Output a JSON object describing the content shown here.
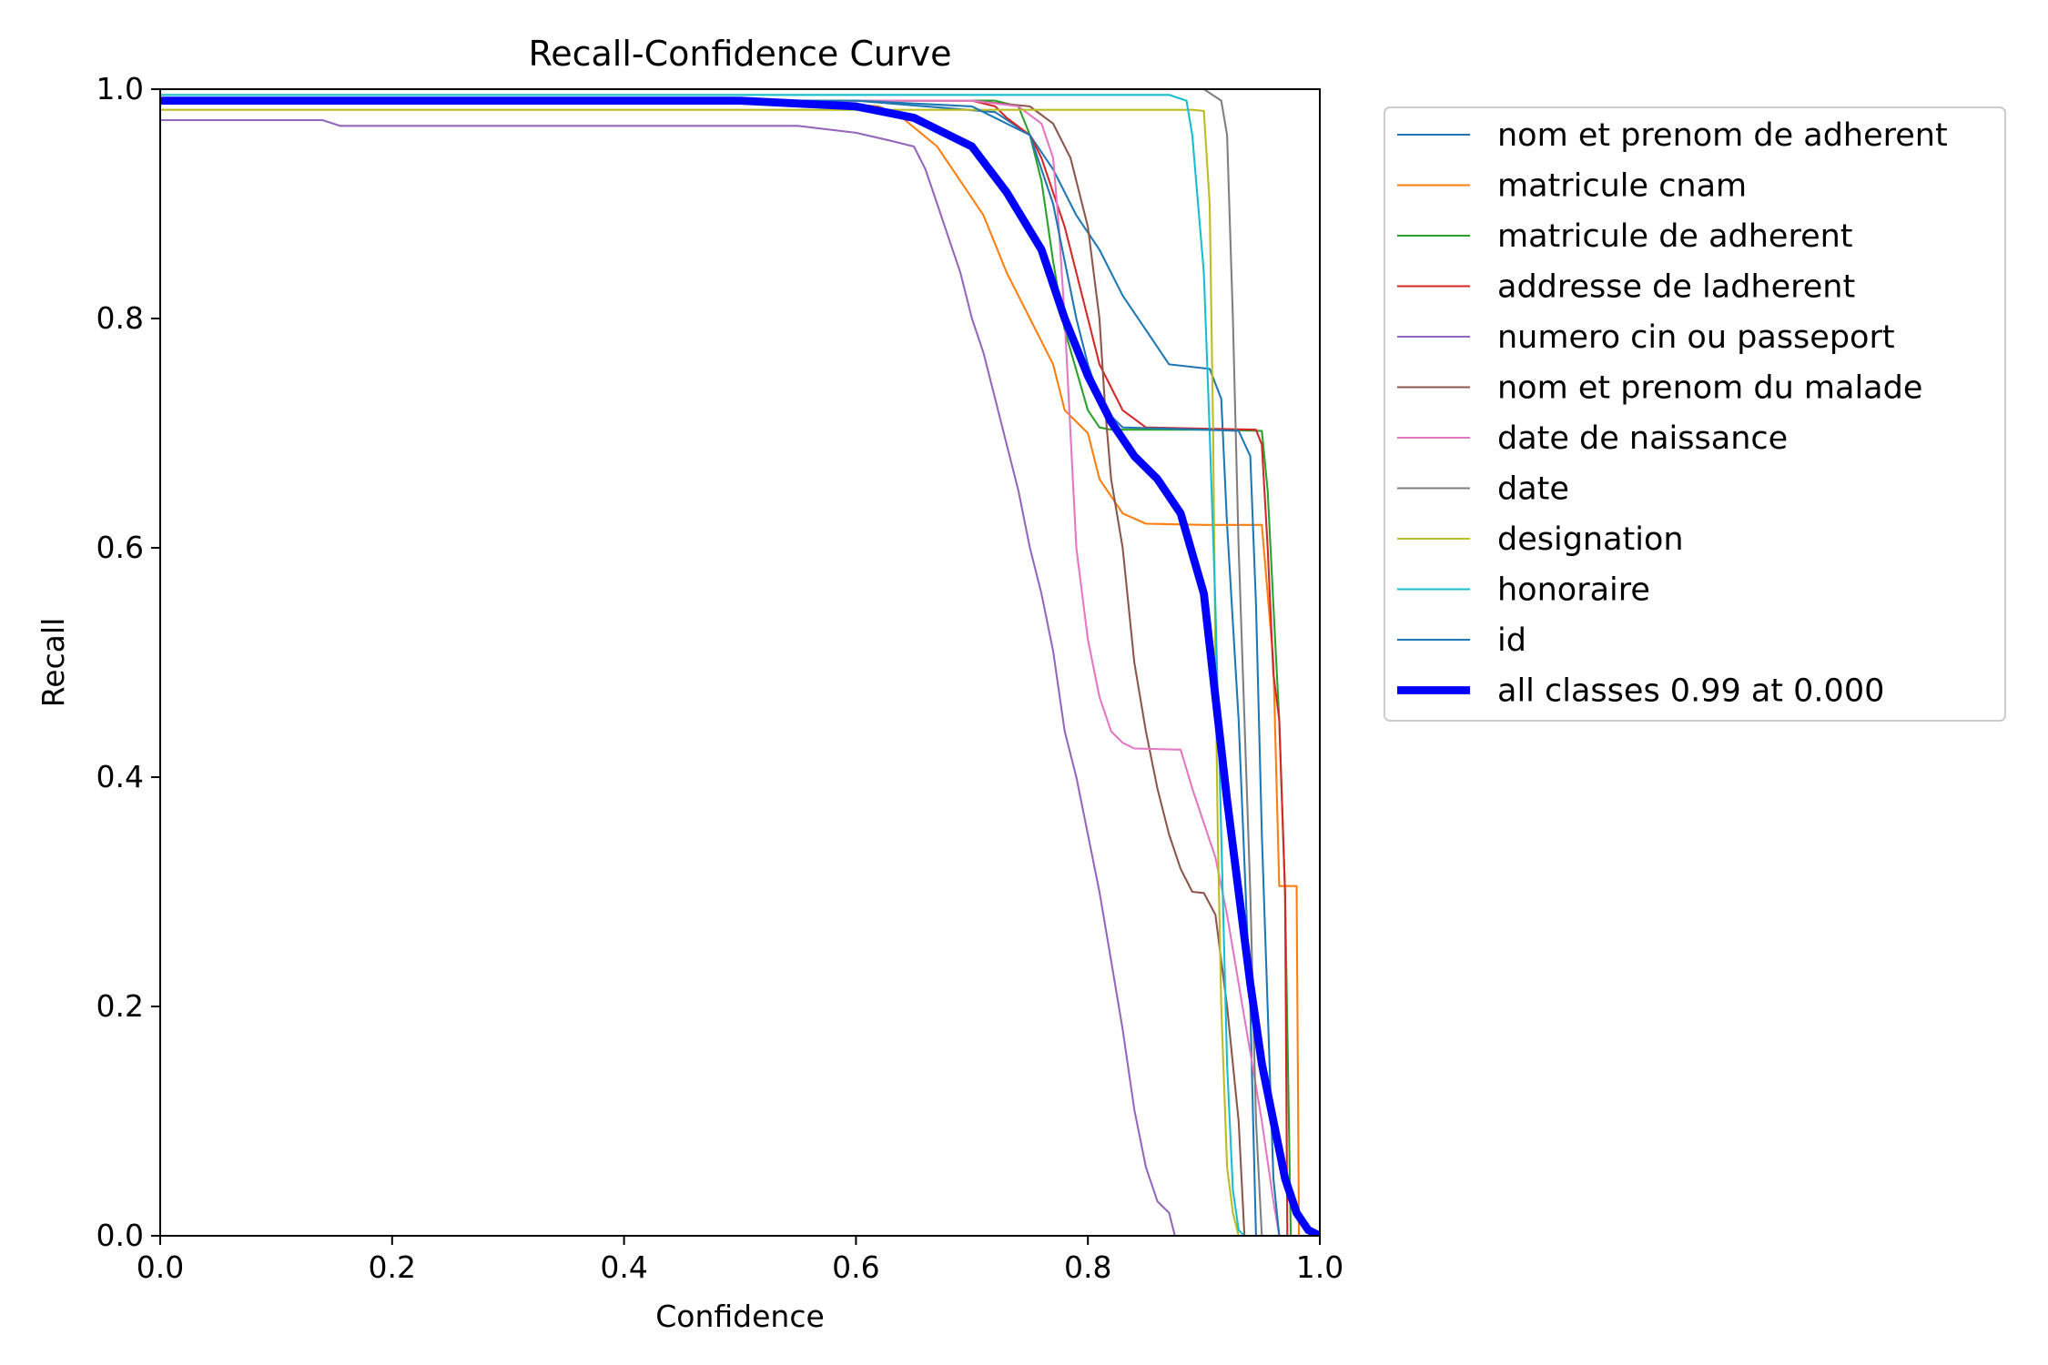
{
  "chart_data": {
    "type": "line",
    "title": "Recall-Confidence Curve",
    "xlabel": "Confidence",
    "ylabel": "Recall",
    "xlim": [
      0,
      1
    ],
    "ylim": [
      0,
      1
    ],
    "xticks": [
      "0.0",
      "0.2",
      "0.4",
      "0.6",
      "0.8",
      "1.0"
    ],
    "yticks": [
      "0.0",
      "0.2",
      "0.4",
      "0.6",
      "0.8",
      "1.0"
    ],
    "grid": false,
    "legend_position": "outside-right-top",
    "series": [
      {
        "name": "nom et prenom de adherent",
        "color": "#1f77b4",
        "width": 1.3,
        "points": [
          [
            0,
            0.99
          ],
          [
            0.6,
            0.99
          ],
          [
            0.72,
            0.98
          ],
          [
            0.75,
            0.96
          ],
          [
            0.77,
            0.93
          ],
          [
            0.79,
            0.89
          ],
          [
            0.81,
            0.86
          ],
          [
            0.83,
            0.82
          ],
          [
            0.85,
            0.79
          ],
          [
            0.87,
            0.76
          ],
          [
            0.905,
            0.756
          ],
          [
            0.915,
            0.73
          ],
          [
            0.92,
            0.62
          ],
          [
            0.93,
            0.45
          ],
          [
            0.94,
            0.2
          ],
          [
            0.945,
            0.0
          ],
          [
            1.0,
            0.0
          ]
        ]
      },
      {
        "name": "matricule cnam",
        "color": "#ff7f0e",
        "width": 1.3,
        "points": [
          [
            0,
            0.99
          ],
          [
            0.55,
            0.99
          ],
          [
            0.62,
            0.985
          ],
          [
            0.64,
            0.975
          ],
          [
            0.67,
            0.95
          ],
          [
            0.69,
            0.92
          ],
          [
            0.71,
            0.89
          ],
          [
            0.73,
            0.84
          ],
          [
            0.75,
            0.8
          ],
          [
            0.77,
            0.76
          ],
          [
            0.78,
            0.72
          ],
          [
            0.8,
            0.7
          ],
          [
            0.81,
            0.66
          ],
          [
            0.83,
            0.63
          ],
          [
            0.85,
            0.621
          ],
          [
            0.9,
            0.62
          ],
          [
            0.95,
            0.62
          ],
          [
            0.96,
            0.5
          ],
          [
            0.965,
            0.305
          ],
          [
            0.98,
            0.305
          ],
          [
            0.982,
            0.0
          ],
          [
            1.0,
            0.0
          ]
        ]
      },
      {
        "name": "matricule de adherent",
        "color": "#2ca02c",
        "width": 1.3,
        "points": [
          [
            0,
            0.99
          ],
          [
            0.66,
            0.99
          ],
          [
            0.72,
            0.99
          ],
          [
            0.74,
            0.985
          ],
          [
            0.75,
            0.96
          ],
          [
            0.76,
            0.92
          ],
          [
            0.77,
            0.85
          ],
          [
            0.78,
            0.79
          ],
          [
            0.8,
            0.72
          ],
          [
            0.81,
            0.705
          ],
          [
            0.82,
            0.703
          ],
          [
            0.9,
            0.703
          ],
          [
            0.95,
            0.702
          ],
          [
            0.955,
            0.65
          ],
          [
            0.96,
            0.55
          ],
          [
            0.965,
            0.45
          ],
          [
            0.97,
            0.3
          ],
          [
            0.975,
            0.0
          ],
          [
            1.0,
            0.0
          ]
        ]
      },
      {
        "name": "addresse de ladherent",
        "color": "#d62728",
        "width": 1.3,
        "points": [
          [
            0,
            0.99
          ],
          [
            0.7,
            0.99
          ],
          [
            0.72,
            0.985
          ],
          [
            0.73,
            0.975
          ],
          [
            0.75,
            0.96
          ],
          [
            0.76,
            0.94
          ],
          [
            0.78,
            0.88
          ],
          [
            0.79,
            0.84
          ],
          [
            0.8,
            0.8
          ],
          [
            0.81,
            0.76
          ],
          [
            0.83,
            0.72
          ],
          [
            0.85,
            0.705
          ],
          [
            0.9,
            0.704
          ],
          [
            0.945,
            0.703
          ],
          [
            0.95,
            0.69
          ],
          [
            0.955,
            0.6
          ],
          [
            0.96,
            0.49
          ],
          [
            0.965,
            0.45
          ],
          [
            0.97,
            0.3
          ],
          [
            0.972,
            0.0
          ],
          [
            1.0,
            0.0
          ]
        ]
      },
      {
        "name": "numero cin ou passeport",
        "color": "#9467bd",
        "width": 1.3,
        "points": [
          [
            0,
            0.973
          ],
          [
            0.14,
            0.973
          ],
          [
            0.155,
            0.968
          ],
          [
            0.55,
            0.968
          ],
          [
            0.6,
            0.962
          ],
          [
            0.63,
            0.955
          ],
          [
            0.65,
            0.95
          ],
          [
            0.66,
            0.93
          ],
          [
            0.67,
            0.9
          ],
          [
            0.68,
            0.87
          ],
          [
            0.69,
            0.84
          ],
          [
            0.7,
            0.8
          ],
          [
            0.71,
            0.77
          ],
          [
            0.72,
            0.73
          ],
          [
            0.73,
            0.69
          ],
          [
            0.74,
            0.65
          ],
          [
            0.75,
            0.6
          ],
          [
            0.76,
            0.56
          ],
          [
            0.77,
            0.51
          ],
          [
            0.78,
            0.44
          ],
          [
            0.79,
            0.4
          ],
          [
            0.8,
            0.35
          ],
          [
            0.81,
            0.3
          ],
          [
            0.82,
            0.24
          ],
          [
            0.83,
            0.18
          ],
          [
            0.84,
            0.11
          ],
          [
            0.85,
            0.06
          ],
          [
            0.86,
            0.03
          ],
          [
            0.87,
            0.02
          ],
          [
            0.875,
            0.0
          ],
          [
            1.0,
            0.0
          ]
        ]
      },
      {
        "name": "nom et prenom du malade",
        "color": "#8c564b",
        "width": 1.3,
        "points": [
          [
            0,
            0.99
          ],
          [
            0.7,
            0.99
          ],
          [
            0.75,
            0.985
          ],
          [
            0.77,
            0.97
          ],
          [
            0.785,
            0.94
          ],
          [
            0.8,
            0.88
          ],
          [
            0.81,
            0.8
          ],
          [
            0.815,
            0.72
          ],
          [
            0.82,
            0.66
          ],
          [
            0.83,
            0.6
          ],
          [
            0.84,
            0.5
          ],
          [
            0.85,
            0.44
          ],
          [
            0.86,
            0.39
          ],
          [
            0.87,
            0.35
          ],
          [
            0.88,
            0.32
          ],
          [
            0.89,
            0.3
          ],
          [
            0.9,
            0.299
          ],
          [
            0.91,
            0.28
          ],
          [
            0.92,
            0.2
          ],
          [
            0.93,
            0.1
          ],
          [
            0.935,
            0.0
          ],
          [
            1.0,
            0.0
          ]
        ]
      },
      {
        "name": "date de naissance",
        "color": "#e377c2",
        "width": 1.3,
        "points": [
          [
            0,
            0.99
          ],
          [
            0.7,
            0.99
          ],
          [
            0.74,
            0.985
          ],
          [
            0.76,
            0.97
          ],
          [
            0.77,
            0.94
          ],
          [
            0.775,
            0.88
          ],
          [
            0.78,
            0.8
          ],
          [
            0.785,
            0.7
          ],
          [
            0.79,
            0.6
          ],
          [
            0.8,
            0.52
          ],
          [
            0.81,
            0.47
          ],
          [
            0.82,
            0.44
          ],
          [
            0.83,
            0.43
          ],
          [
            0.84,
            0.425
          ],
          [
            0.88,
            0.424
          ],
          [
            0.89,
            0.39
          ],
          [
            0.9,
            0.36
          ],
          [
            0.91,
            0.33
          ],
          [
            0.92,
            0.28
          ],
          [
            0.93,
            0.22
          ],
          [
            0.94,
            0.16
          ],
          [
            0.95,
            0.1
          ],
          [
            0.96,
            0.03
          ],
          [
            0.965,
            0.0
          ],
          [
            1.0,
            0.0
          ]
        ]
      },
      {
        "name": "date",
        "color": "#7f7f7f",
        "width": 1.3,
        "points": [
          [
            0,
            1.0
          ],
          [
            0.9,
            1.0
          ],
          [
            0.915,
            0.99
          ],
          [
            0.92,
            0.96
          ],
          [
            0.925,
            0.8
          ],
          [
            0.93,
            0.6
          ],
          [
            0.935,
            0.45
          ],
          [
            0.94,
            0.3
          ],
          [
            0.945,
            0.1
          ],
          [
            0.95,
            0.0
          ],
          [
            1.0,
            0.0
          ]
        ]
      },
      {
        "name": "designation",
        "color": "#bcbd22",
        "width": 1.3,
        "points": [
          [
            0,
            0.982
          ],
          [
            0.89,
            0.982
          ],
          [
            0.9,
            0.981
          ],
          [
            0.905,
            0.9
          ],
          [
            0.908,
            0.7
          ],
          [
            0.91,
            0.5
          ],
          [
            0.912,
            0.35
          ],
          [
            0.915,
            0.2
          ],
          [
            0.92,
            0.06
          ],
          [
            0.925,
            0.02
          ],
          [
            0.93,
            0.0
          ],
          [
            1.0,
            0.0
          ]
        ]
      },
      {
        "name": "honoraire",
        "color": "#17becf",
        "width": 1.3,
        "points": [
          [
            0,
            0.995
          ],
          [
            0.87,
            0.995
          ],
          [
            0.885,
            0.99
          ],
          [
            0.89,
            0.96
          ],
          [
            0.895,
            0.9
          ],
          [
            0.9,
            0.84
          ],
          [
            0.905,
            0.7
          ],
          [
            0.91,
            0.55
          ],
          [
            0.915,
            0.35
          ],
          [
            0.92,
            0.15
          ],
          [
            0.925,
            0.04
          ],
          [
            0.93,
            0.005
          ],
          [
            0.935,
            0.0
          ],
          [
            1.0,
            0.0
          ]
        ]
      },
      {
        "name": "id",
        "color": "#1f77b4",
        "width": 1.3,
        "points": [
          [
            0,
            0.99
          ],
          [
            0.6,
            0.99
          ],
          [
            0.7,
            0.985
          ],
          [
            0.75,
            0.96
          ],
          [
            0.77,
            0.9
          ],
          [
            0.78,
            0.85
          ],
          [
            0.79,
            0.8
          ],
          [
            0.8,
            0.76
          ],
          [
            0.81,
            0.73
          ],
          [
            0.82,
            0.715
          ],
          [
            0.83,
            0.705
          ],
          [
            0.9,
            0.703
          ],
          [
            0.93,
            0.702
          ],
          [
            0.94,
            0.68
          ],
          [
            0.945,
            0.55
          ],
          [
            0.95,
            0.35
          ],
          [
            0.96,
            0.05
          ],
          [
            0.965,
            0.0
          ],
          [
            1.0,
            0.0
          ]
        ]
      },
      {
        "name": "all classes 0.99 at 0.000",
        "color": "#0000ff",
        "width": 5.5,
        "points": [
          [
            0,
            0.99
          ],
          [
            0.5,
            0.99
          ],
          [
            0.6,
            0.985
          ],
          [
            0.65,
            0.975
          ],
          [
            0.7,
            0.95
          ],
          [
            0.73,
            0.91
          ],
          [
            0.76,
            0.86
          ],
          [
            0.78,
            0.8
          ],
          [
            0.8,
            0.75
          ],
          [
            0.82,
            0.71
          ],
          [
            0.84,
            0.68
          ],
          [
            0.86,
            0.66
          ],
          [
            0.88,
            0.63
          ],
          [
            0.9,
            0.56
          ],
          [
            0.91,
            0.47
          ],
          [
            0.92,
            0.38
          ],
          [
            0.93,
            0.3
          ],
          [
            0.94,
            0.22
          ],
          [
            0.95,
            0.15
          ],
          [
            0.96,
            0.1
          ],
          [
            0.97,
            0.05
          ],
          [
            0.98,
            0.02
          ],
          [
            0.99,
            0.005
          ],
          [
            1.0,
            0.0
          ]
        ]
      }
    ]
  }
}
